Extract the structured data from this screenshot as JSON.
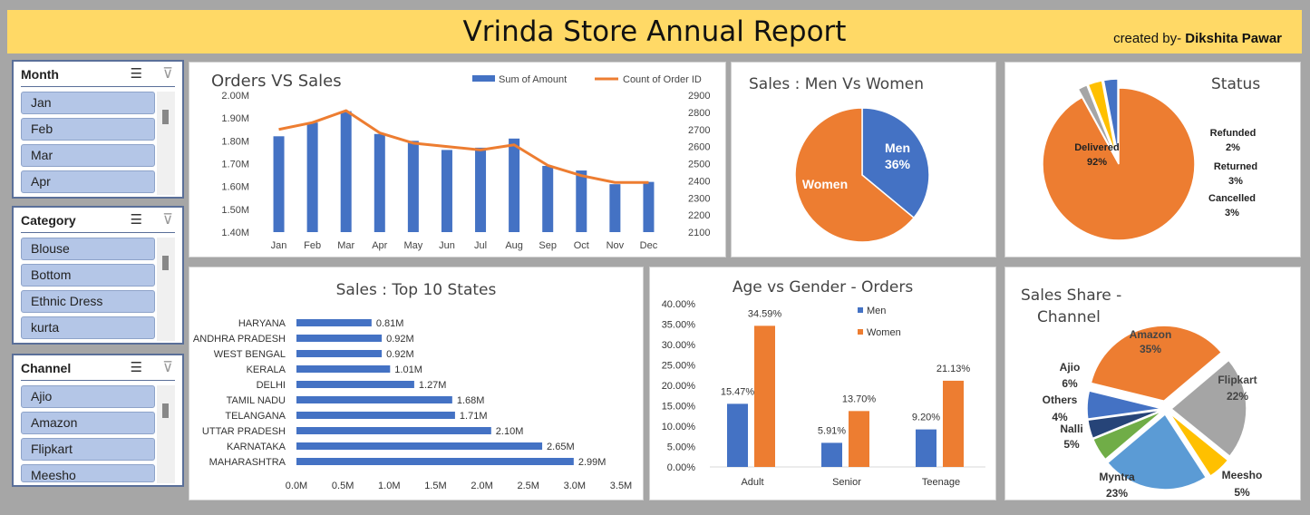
{
  "header": {
    "title": "Vrinda Store Annual Report",
    "credit_prefix": "created by-",
    "credit_name": "Dikshita Pawar"
  },
  "slicers": [
    {
      "header": "Month",
      "items": [
        "Jan",
        "Feb",
        "Mar",
        "Apr"
      ]
    },
    {
      "header": "Category",
      "items": [
        "Blouse",
        "Bottom",
        "Ethnic Dress",
        "kurta"
      ]
    },
    {
      "header": "Channel",
      "items": [
        "Ajio",
        "Amazon",
        "Flipkart",
        "Meesho"
      ]
    }
  ],
  "colors": {
    "blue": "#4472c4",
    "orange": "#ed7d31",
    "gray": "#a5a5a5",
    "yellow": "#ffc000",
    "lightblue": "#5b9bd5",
    "green": "#70ad47",
    "navy": "#264478"
  },
  "chart_data": [
    {
      "type": "bar",
      "title": "Orders VS Sales",
      "categories": [
        "Jan",
        "Feb",
        "Mar",
        "Apr",
        "May",
        "Jun",
        "Jul",
        "Aug",
        "Sep",
        "Oct",
        "Nov",
        "Dec"
      ],
      "series": [
        {
          "name": "Sum of Amount",
          "type": "bar",
          "axis": "left",
          "values": [
            1.82,
            1.88,
            1.93,
            1.83,
            1.8,
            1.76,
            1.77,
            1.81,
            1.69,
            1.67,
            1.61,
            1.62
          ]
        },
        {
          "name": "Count of Order ID",
          "type": "line",
          "axis": "right",
          "values": [
            2700,
            2740,
            2810,
            2680,
            2620,
            2600,
            2580,
            2610,
            2490,
            2430,
            2390,
            2390
          ]
        }
      ],
      "ylim": [
        1.4,
        2.0
      ],
      "y_ticks": [
        "1.40M",
        "1.50M",
        "1.60M",
        "1.70M",
        "1.80M",
        "1.90M",
        "2.00M"
      ],
      "y2lim": [
        2100,
        2900
      ],
      "y2_ticks": [
        "2100",
        "2200",
        "2300",
        "2400",
        "2500",
        "2600",
        "2700",
        "2800",
        "2900"
      ],
      "legend": "top"
    },
    {
      "type": "pie",
      "title": "Sales : Men Vs Women",
      "slices": [
        {
          "label": "Men",
          "value": 36,
          "display": "36%"
        },
        {
          "label": "Women",
          "value": 64,
          "display": ""
        }
      ]
    },
    {
      "type": "pie",
      "title": "Status",
      "slices": [
        {
          "label": "Delivered",
          "value": 92,
          "display": "92%"
        },
        {
          "label": "Refunded",
          "value": 2,
          "display": "2%"
        },
        {
          "label": "Returned",
          "value": 3,
          "display": "3%"
        },
        {
          "label": "Cancelled",
          "value": 3,
          "display": "3%"
        }
      ]
    },
    {
      "type": "bar",
      "orientation": "horizontal",
      "title": "Sales : Top 10 States",
      "categories": [
        "HARYANA",
        "ANDHRA PRADESH",
        "WEST BENGAL",
        "KERALA",
        "DELHI",
        "TAMIL NADU",
        "TELANGANA",
        "UTTAR PRADESH",
        "KARNATAKA",
        "MAHARASHTRA"
      ],
      "values": [
        0.81,
        0.92,
        0.92,
        1.01,
        1.27,
        1.68,
        1.71,
        2.1,
        2.65,
        2.99
      ],
      "labels": [
        "0.81M",
        "0.92M",
        "0.92M",
        "1.01M",
        "1.27M",
        "1.68M",
        "1.71M",
        "2.10M",
        "2.65M",
        "2.99M"
      ],
      "xlim": [
        0,
        3.5
      ],
      "x_ticks": [
        "0.0M",
        "0.5M",
        "1.0M",
        "1.5M",
        "2.0M",
        "2.5M",
        "3.0M",
        "3.5M"
      ]
    },
    {
      "type": "bar",
      "title": "Age vs Gender - Orders",
      "categories": [
        "Adult",
        "Senior",
        "Teenage"
      ],
      "series": [
        {
          "name": "Men",
          "values": [
            15.47,
            5.91,
            9.2
          ],
          "labels": [
            "15.47%",
            "5.91%",
            "9.20%"
          ]
        },
        {
          "name": "Women",
          "values": [
            34.59,
            13.7,
            21.13
          ],
          "labels": [
            "34.59%",
            "13.70%",
            "21.13%"
          ]
        }
      ],
      "ylim": [
        0,
        40
      ],
      "y_ticks": [
        "0.00%",
        "5.00%",
        "10.00%",
        "15.00%",
        "20.00%",
        "25.00%",
        "30.00%",
        "35.00%",
        "40.00%"
      ],
      "legend": "top-right"
    },
    {
      "type": "pie",
      "title_line1": "Sales Share -",
      "title_line2": "Channel",
      "slices": [
        {
          "label": "Amazon",
          "value": 35,
          "display": "35%"
        },
        {
          "label": "Flipkart",
          "value": 22,
          "display": "22%"
        },
        {
          "label": "Meesho",
          "value": 5,
          "display": "5%"
        },
        {
          "label": "Myntra",
          "value": 23,
          "display": "23%"
        },
        {
          "label": "Nalli",
          "value": 5,
          "display": "5%"
        },
        {
          "label": "Others",
          "value": 4,
          "display": "4%"
        },
        {
          "label": "Ajio",
          "value": 6,
          "display": "6%"
        }
      ]
    }
  ]
}
